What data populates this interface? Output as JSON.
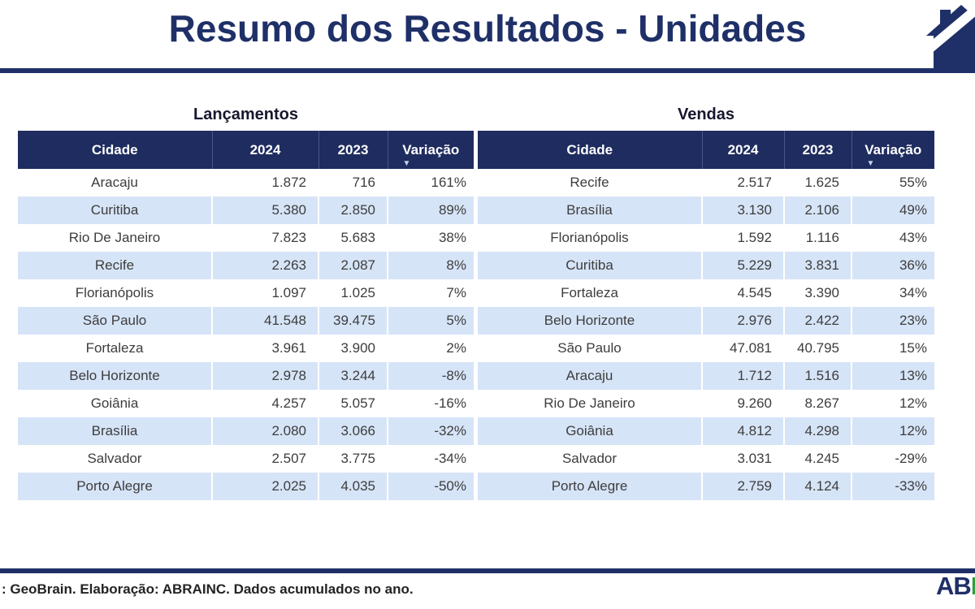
{
  "page": {
    "title": "Resumo dos Resultados - Unidades",
    "footer_note": ": GeoBrain. Elaboração: ABRAINC. Dados acumulados no ano.",
    "logo": {
      "ab": "AB",
      "r": "R"
    },
    "icons": {
      "sort_desc": "▼",
      "house": "house-icon"
    },
    "colors": {
      "navy_header": "#1F2C5F",
      "navy_title": "#1F3068",
      "row_stripe": "#D6E4F7",
      "body_text": "#3D3D3D",
      "logo_green": "#2E9E3F"
    }
  },
  "chart_data": [
    {
      "type": "table",
      "title": "Lançamentos",
      "columns": [
        "Cidade",
        "2024",
        "2023",
        "Variação"
      ],
      "sorted_by": "Variação",
      "sort_direction": "desc",
      "rows": [
        [
          "Aracaju",
          "1.872",
          "716",
          "161%"
        ],
        [
          "Curitiba",
          "5.380",
          "2.850",
          "89%"
        ],
        [
          "Rio De Janeiro",
          "7.823",
          "5.683",
          "38%"
        ],
        [
          "Recife",
          "2.263",
          "2.087",
          "8%"
        ],
        [
          "Florianópolis",
          "1.097",
          "1.025",
          "7%"
        ],
        [
          "São Paulo",
          "41.548",
          "39.475",
          "5%"
        ],
        [
          "Fortaleza",
          "3.961",
          "3.900",
          "2%"
        ],
        [
          "Belo Horizonte",
          "2.978",
          "3.244",
          "-8%"
        ],
        [
          "Goiânia",
          "4.257",
          "5.057",
          "-16%"
        ],
        [
          "Brasília",
          "2.080",
          "3.066",
          "-32%"
        ],
        [
          "Salvador",
          "2.507",
          "3.775",
          "-34%"
        ],
        [
          "Porto Alegre",
          "2.025",
          "4.035",
          "-50%"
        ]
      ]
    },
    {
      "type": "table",
      "title": "Vendas",
      "columns": [
        "Cidade",
        "2024",
        "2023",
        "Variação"
      ],
      "sorted_by": "Variação",
      "sort_direction": "desc",
      "rows": [
        [
          "Recife",
          "2.517",
          "1.625",
          "55%"
        ],
        [
          "Brasília",
          "3.130",
          "2.106",
          "49%"
        ],
        [
          "Florianópolis",
          "1.592",
          "1.116",
          "43%"
        ],
        [
          "Curitiba",
          "5.229",
          "3.831",
          "36%"
        ],
        [
          "Fortaleza",
          "4.545",
          "3.390",
          "34%"
        ],
        [
          "Belo Horizonte",
          "2.976",
          "2.422",
          "23%"
        ],
        [
          "São Paulo",
          "47.081",
          "40.795",
          "15%"
        ],
        [
          "Aracaju",
          "1.712",
          "1.516",
          "13%"
        ],
        [
          "Rio De Janeiro",
          "9.260",
          "8.267",
          "12%"
        ],
        [
          "Goiânia",
          "4.812",
          "4.298",
          "12%"
        ],
        [
          "Salvador",
          "3.031",
          "4.245",
          "-29%"
        ],
        [
          "Porto Alegre",
          "2.759",
          "4.124",
          "-33%"
        ]
      ]
    }
  ]
}
